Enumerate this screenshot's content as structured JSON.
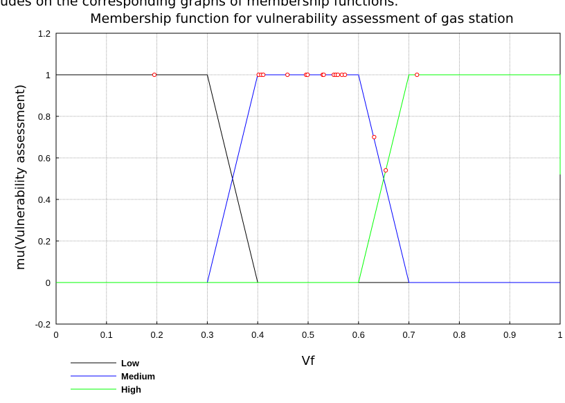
{
  "caption": "udes on the corresponding graphs of membership functions.",
  "chart_data": {
    "type": "line",
    "title": "Membership function for vulnerability assessment of gas station",
    "xlabel": "Vf",
    "ylabel": "mu(Vulnerability assessment)",
    "xlim": [
      0,
      1
    ],
    "ylim": [
      -0.2,
      1.2
    ],
    "xticks": [
      "0",
      "0.1",
      "0.2",
      "0.3",
      "0.4",
      "0.5",
      "0.6",
      "0.7",
      "0.8",
      "0.9",
      "1"
    ],
    "yticks": [
      "-0.2",
      "0",
      "0.2",
      "0.4",
      "0.6",
      "0.8",
      "1",
      "1.2"
    ],
    "grid": true,
    "legend_position": "below-left",
    "series": [
      {
        "name": "Low",
        "color": "#000000",
        "x": [
          0,
          0,
          0.3,
          0.4,
          0.6,
          0.7,
          1
        ],
        "y": [
          0.52,
          1,
          1,
          0,
          0,
          0,
          0
        ]
      },
      {
        "name": "Medium",
        "color": "#0000ff",
        "x": [
          0,
          0.3,
          0.4,
          0.6,
          0.7,
          1
        ],
        "y": [
          0,
          0,
          1,
          1,
          0,
          0
        ]
      },
      {
        "name": "High",
        "color": "#00ff00",
        "x": [
          0,
          0.6,
          0.7,
          1,
          1
        ],
        "y": [
          0,
          0,
          1,
          1,
          0.52
        ]
      }
    ],
    "points": {
      "color": "#ff0000",
      "x": [
        0.195,
        0.402,
        0.407,
        0.411,
        0.459,
        0.496,
        0.499,
        0.529,
        0.531,
        0.551,
        0.555,
        0.559,
        0.567,
        0.573,
        0.631,
        0.654,
        0.716
      ],
      "y": [
        1,
        1,
        1,
        1,
        1,
        1,
        1,
        1,
        1,
        1,
        1,
        1,
        1,
        1,
        0.7,
        0.54,
        1
      ]
    }
  }
}
